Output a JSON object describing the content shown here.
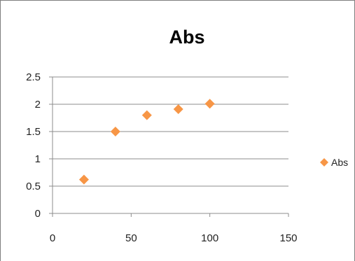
{
  "chart_data": {
    "type": "scatter",
    "title": "Abs",
    "xlabel": "",
    "ylabel": "",
    "xlim": [
      0,
      150
    ],
    "ylim": [
      0,
      2.5
    ],
    "x_ticks": [
      "0",
      "50",
      "100",
      "150"
    ],
    "y_ticks": [
      "0",
      "0.5",
      "1",
      "1.5",
      "2",
      "2.5"
    ],
    "grid": "horizontal",
    "legend_position": "right",
    "series": [
      {
        "name": "Abs",
        "marker": "diamond",
        "color": "#f79646",
        "x": [
          20,
          40,
          60,
          80,
          100
        ],
        "y": [
          0.62,
          1.5,
          1.8,
          1.91,
          2.01
        ]
      }
    ]
  }
}
